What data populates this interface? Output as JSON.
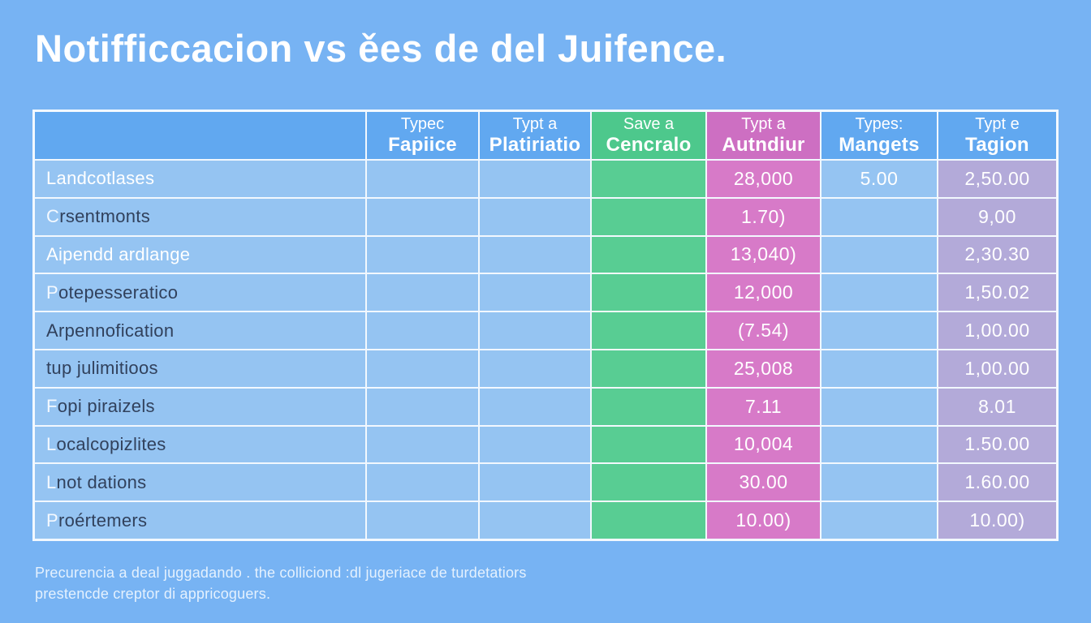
{
  "colors": {
    "background": "#77b3f3",
    "header_blue": "#61a8f0",
    "cell_blue": "#95c4f2",
    "header_green": "#4dc88c",
    "cell_green": "#58cd93",
    "header_pink": "#cd6fc2",
    "cell_pink": "#d77ac8",
    "cell_lavender": "#b3aad9",
    "grid_line": "#f2f8fe",
    "dark_text": "#31415c",
    "white_text": "#ffffff"
  },
  "chart_data": {
    "type": "table",
    "title": "Notifficcacion vs ěes de del Juifence.",
    "footer_line1": "Precurencia a deal juggadando . the colliciond :dl jugeriace de turdetatiors",
    "footer_line2": "prestencde creptor di appricoguers.",
    "columns": [
      {
        "line1": "",
        "line2": "",
        "header_style": "hblue",
        "cell_style": "blue"
      },
      {
        "line1": "Typec",
        "line2": "Fapiice",
        "header_style": "hblue",
        "cell_style": "blue"
      },
      {
        "line1": "Typt a",
        "line2": "Platiriatio",
        "header_style": "hblue",
        "cell_style": "blue"
      },
      {
        "line1": "Save a",
        "line2": "Cencralo",
        "header_style": "hgreen",
        "cell_style": "green"
      },
      {
        "line1": "Typt a",
        "line2": "Autndiur",
        "header_style": "hpink",
        "cell_style": "pink"
      },
      {
        "line1": "Types:",
        "line2": "Mangets",
        "header_style": "hblue",
        "cell_style": "blue"
      },
      {
        "line1": "Typt e",
        "line2": "Tagion",
        "header_style": "hblue",
        "cell_style": "lavender"
      }
    ],
    "rows": [
      {
        "label": "Landcotlases",
        "label_style": "white",
        "values": [
          "",
          "",
          "",
          "28,000",
          "5.00",
          "2,50.00"
        ]
      },
      {
        "label": "Crsentmonts",
        "label_style": "mixed",
        "values": [
          "",
          "",
          "",
          "1.70)",
          "",
          "9,00"
        ]
      },
      {
        "label": "Aipendd ardlange",
        "label_style": "white",
        "values": [
          "",
          "",
          "",
          "13,040)",
          "",
          "2,30.30"
        ]
      },
      {
        "label": "Potepesseratico",
        "label_style": "mixed",
        "values": [
          "",
          "",
          "",
          "12,000",
          "",
          "1,50.02"
        ]
      },
      {
        "label": "Arpennofication",
        "label_style": "dark",
        "values": [
          "",
          "",
          "",
          "(7.54)",
          "",
          "1,00.00"
        ]
      },
      {
        "label": "tup julimitioos",
        "label_style": "dark",
        "values": [
          "",
          "",
          "",
          "25,008",
          "",
          "1,00.00"
        ]
      },
      {
        "label": "Fopi piraizels",
        "label_style": "mixed",
        "values": [
          "",
          "",
          "",
          "7.11",
          "",
          "8.01"
        ]
      },
      {
        "label": "Localcopizlites",
        "label_style": "mixed",
        "values": [
          "",
          "",
          "",
          "10,004",
          "",
          "1.50.00"
        ]
      },
      {
        "label": "Lnot dations",
        "label_style": "mixed",
        "values": [
          "",
          "",
          "",
          "30.00",
          "",
          "1.60.00"
        ]
      },
      {
        "label": "Proértemers",
        "label_style": "mixed",
        "values": [
          "",
          "",
          "",
          "10.00)",
          "",
          "10.00)"
        ]
      }
    ]
  }
}
